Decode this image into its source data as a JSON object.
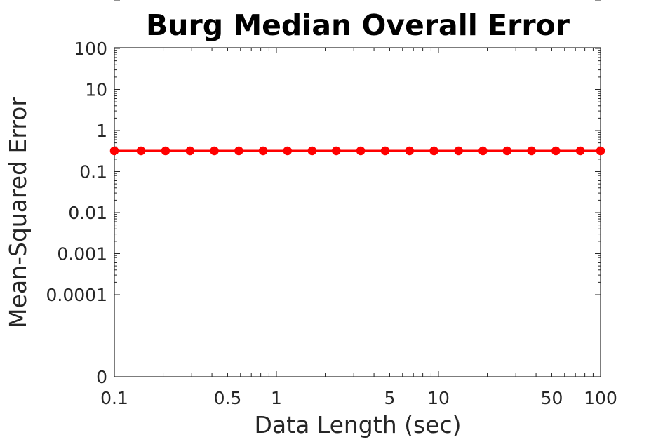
{
  "chart_data": {
    "type": "line",
    "title": "Burg Median Overall Error",
    "xlabel": "Data Length (sec)",
    "ylabel": "Mean-Squared Error",
    "x_scale": "log",
    "xlim": [
      0.1,
      100
    ],
    "x_ticks": [
      0.1,
      0.5,
      1,
      5,
      10,
      50,
      100
    ],
    "x_tick_labels": [
      "0.1",
      "0.5",
      "1",
      "5",
      "10",
      "50",
      "100"
    ],
    "y_tick_labels": [
      "0",
      "0.0001",
      "0.001",
      "0.01",
      "0.1",
      "1",
      "10",
      "100"
    ],
    "grid": false,
    "legend": "none",
    "series": [
      {
        "color": "#ff0000",
        "marker": "circle",
        "x": [
          0.1,
          0.146,
          0.207,
          0.293,
          0.414,
          0.586,
          0.828,
          1.17,
          1.66,
          2.34,
          3.31,
          4.69,
          6.63,
          9.38,
          13.3,
          18.8,
          26.5,
          37.5,
          53.0,
          75.0,
          100
        ],
        "y": [
          0.32,
          0.32,
          0.32,
          0.32,
          0.32,
          0.32,
          0.32,
          0.32,
          0.32,
          0.32,
          0.32,
          0.32,
          0.32,
          0.32,
          0.32,
          0.32,
          0.32,
          0.32,
          0.32,
          0.32,
          0.32
        ]
      }
    ]
  }
}
